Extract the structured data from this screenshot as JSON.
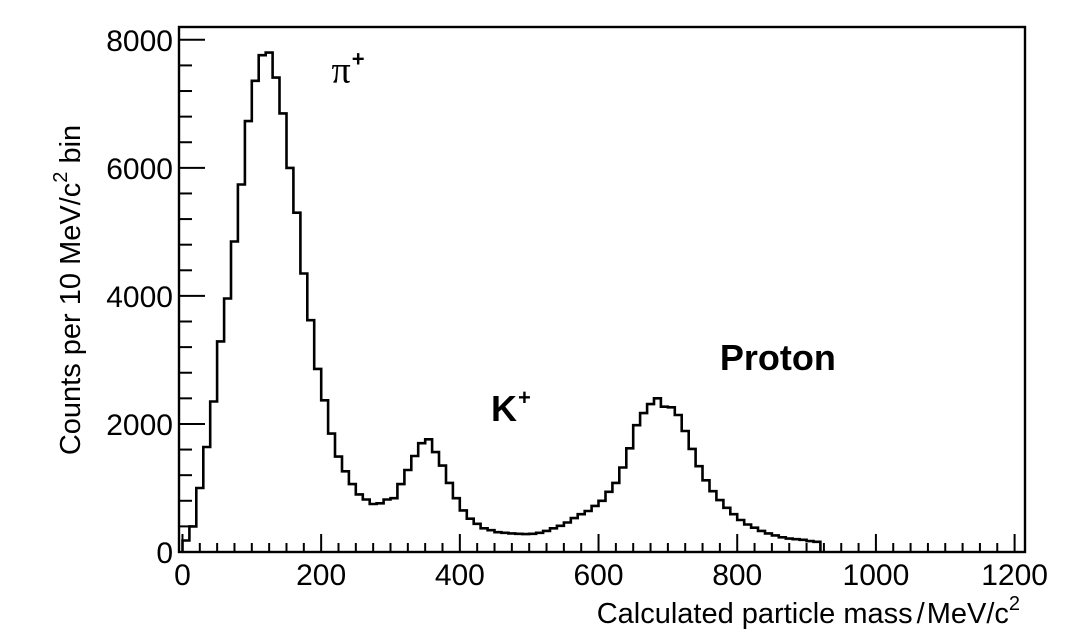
{
  "chart_data": {
    "type": "histogram",
    "xlabel_main": "Calculated particle mass",
    "xlabel_sep": "/",
    "xlabel_unit": "MeV/c",
    "xlabel_unit_sup": "2",
    "ylabel_main": "Counts per 10 MeV/c",
    "ylabel_sup": "2",
    "ylabel_tail": " bin",
    "xlim": [
      -5,
      1215
    ],
    "ylim": [
      0,
      8200
    ],
    "bin_width": 10,
    "xticks": [
      {
        "value": 0,
        "label": "0"
      },
      {
        "value": 200,
        "label": "200"
      },
      {
        "value": 400,
        "label": "400"
      },
      {
        "value": 600,
        "label": "600"
      },
      {
        "value": 800,
        "label": "800"
      },
      {
        "value": 1000,
        "label": "1000"
      },
      {
        "value": 1200,
        "label": "1200"
      }
    ],
    "yticks": [
      {
        "value": 0,
        "label": "0"
      },
      {
        "value": 2000,
        "label": "2000"
      },
      {
        "value": 4000,
        "label": "4000"
      },
      {
        "value": 6000,
        "label": "6000"
      },
      {
        "value": 8000,
        "label": "8000"
      }
    ],
    "bin_edges_start": 0,
    "counts": [
      180,
      400,
      1000,
      1640,
      2350,
      3290,
      3960,
      4850,
      5740,
      6730,
      7360,
      7760,
      7800,
      7410,
      6850,
      6000,
      5300,
      4350,
      3620,
      2860,
      2370,
      1850,
      1490,
      1260,
      1060,
      900,
      820,
      750,
      760,
      820,
      840,
      1060,
      1280,
      1500,
      1700,
      1760,
      1560,
      1350,
      1080,
      840,
      650,
      520,
      440,
      370,
      340,
      310,
      300,
      290,
      285,
      280,
      285,
      300,
      330,
      370,
      410,
      460,
      530,
      590,
      640,
      720,
      800,
      940,
      1080,
      1320,
      1620,
      1980,
      2170,
      2310,
      2400,
      2270,
      2260,
      2140,
      1890,
      1610,
      1340,
      1120,
      950,
      810,
      690,
      590,
      500,
      430,
      380,
      330,
      290,
      260,
      230,
      210,
      200,
      190,
      170,
      160
    ],
    "annotations": [
      {
        "name": "pion",
        "text": "π",
        "sup": "+",
        "x": 215,
        "y": 7330,
        "font": "serif"
      },
      {
        "name": "kaon",
        "text": "K",
        "sup": "+",
        "x": 445,
        "y": 2050,
        "font": "sans"
      },
      {
        "name": "proton",
        "text": "Proton",
        "sup": "",
        "x": 775,
        "y": 2840,
        "font": "sans"
      }
    ]
  }
}
